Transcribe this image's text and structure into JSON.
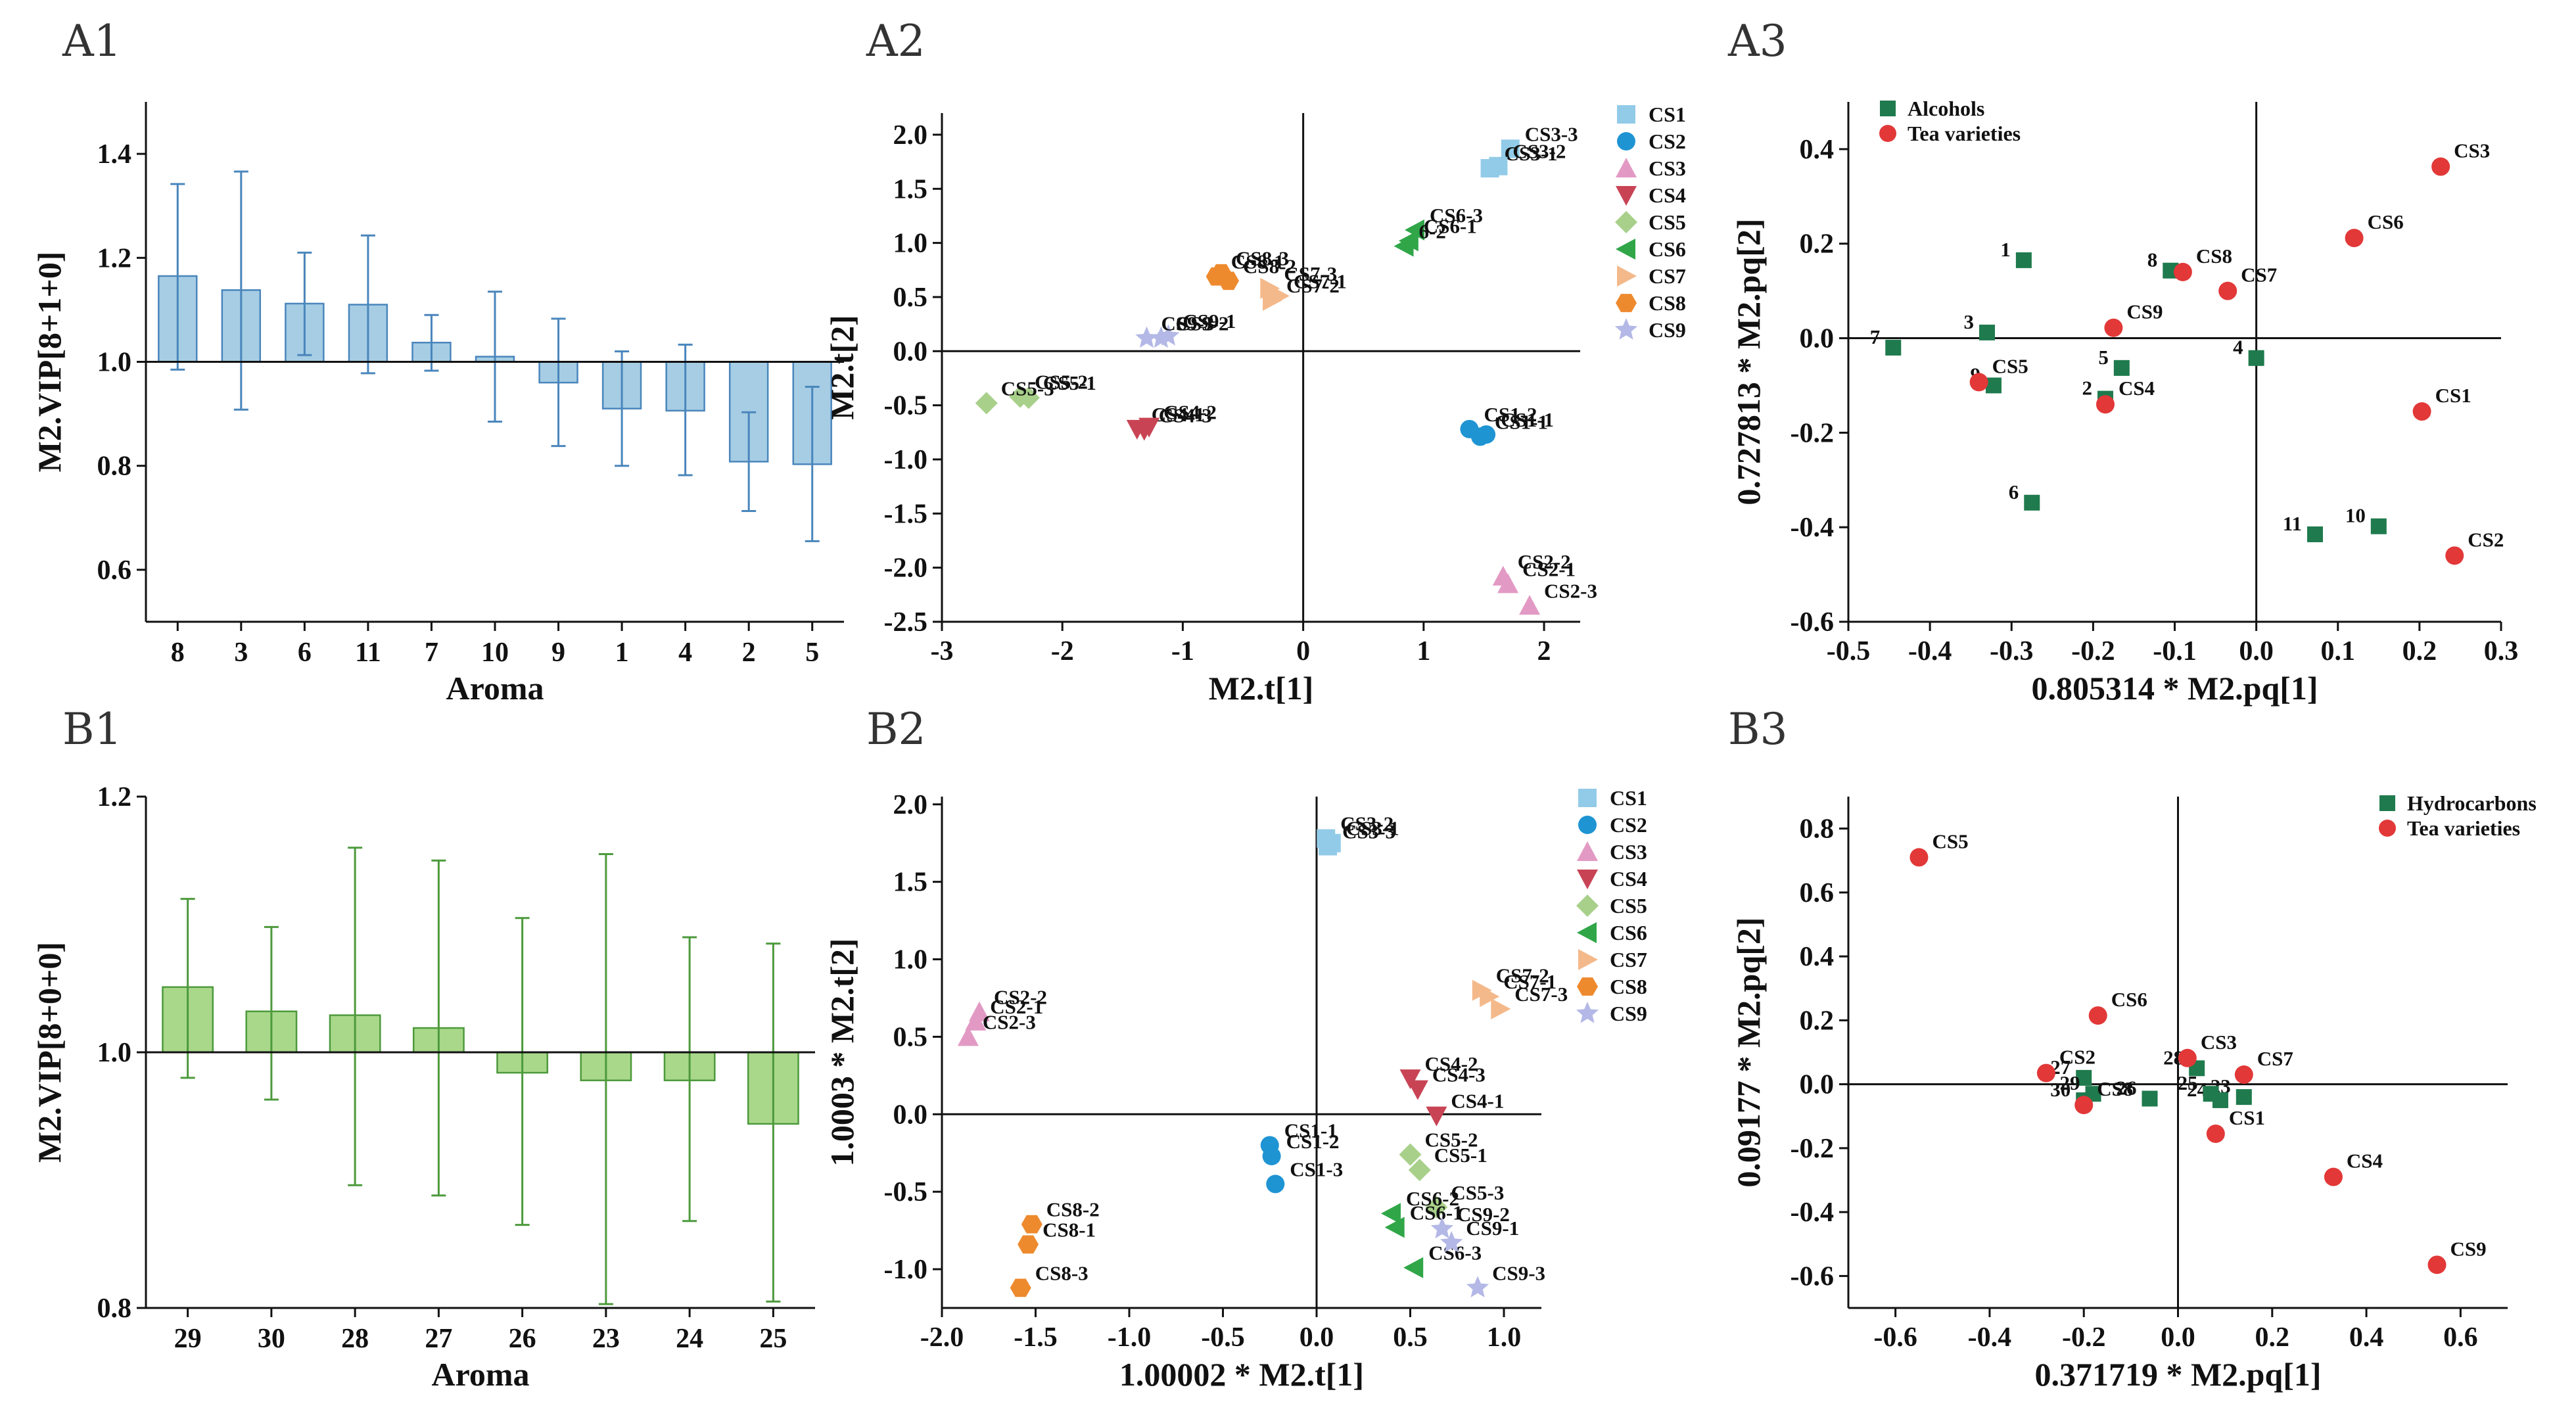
{
  "colors": {
    "vip_fill_A": "#a6cde4",
    "vip_stroke_A": "#4a86bc",
    "vip_fill_B": "#a9d88a",
    "vip_stroke_B": "#4d9a3c",
    "CS1": "#92cbe8",
    "CS2": "#1e94d3",
    "CS3": "#e29ac4",
    "CS4": "#c84455",
    "CS5": "#a8d08a",
    "CS6": "#30a648",
    "CS7": "#f4b98b",
    "CS8": "#ee8a2e",
    "CS9": "#b4b8e6",
    "compound": "#1f7a4d",
    "tea": "#e23838"
  },
  "chart_data": [
    {
      "id": "A1",
      "panel_label": "A1",
      "type": "bar",
      "xlabel": "Aroma",
      "ylabel": "M2.VIP[8+1+0]",
      "ylim": [
        0.5,
        1.5
      ],
      "yticks": [
        "0.6",
        "0.8",
        "1.0",
        "1.2",
        "1.4"
      ],
      "baseline": 1.0,
      "categories": [
        "8",
        "3",
        "6",
        "11",
        "7",
        "10",
        "9",
        "1",
        "4",
        "2",
        "5"
      ],
      "values": [
        1.165,
        1.138,
        1.112,
        1.11,
        1.037,
        1.01,
        0.96,
        0.91,
        0.906,
        0.808,
        0.803
      ],
      "err_high": [
        1.342,
        1.366,
        1.21,
        1.243,
        1.09,
        1.135,
        1.083,
        1.02,
        1.033,
        0.903,
        0.952
      ],
      "err_low": [
        0.985,
        0.908,
        1.013,
        0.978,
        0.983,
        0.885,
        0.838,
        0.8,
        0.782,
        0.713,
        0.655
      ]
    },
    {
      "id": "A2",
      "panel_label": "A2",
      "type": "scatter",
      "xlabel": "M2.t[1]",
      "ylabel": "M2.t[2]",
      "xlim": [
        -3,
        2.3
      ],
      "ylim": [
        -2.5,
        2.2
      ],
      "xticks": [
        "-3",
        "-2",
        "-1",
        "0",
        "1",
        "2"
      ],
      "yticks": [
        "-2.5",
        "-2.0",
        "-1.5",
        "-1.0",
        "-0.5",
        "0.0",
        "0.5",
        "1.0",
        "1.5",
        "2.0"
      ],
      "legend": [
        "CS1",
        "CS2",
        "CS3",
        "CS4",
        "CS5",
        "CS6",
        "CS7",
        "CS8",
        "CS9"
      ],
      "points": [
        {
          "label": "CS3-3",
          "x": 1.72,
          "y": 1.87,
          "g": "CS1"
        },
        {
          "label": "CS3-1",
          "x": 1.55,
          "y": 1.69,
          "g": "CS1"
        },
        {
          "label": "CS3-2",
          "x": 1.62,
          "y": 1.71,
          "g": "CS1"
        },
        {
          "label": "CS1-2",
          "x": 1.38,
          "y": -0.72,
          "g": "CS2"
        },
        {
          "label": "CS1-1",
          "x": 1.52,
          "y": -0.77,
          "g": "CS2"
        },
        {
          "label": "CS1-1",
          "x": 1.47,
          "y": -0.79,
          "g": "CS2"
        },
        {
          "label": "CS2-2",
          "x": 1.66,
          "y": -2.08,
          "g": "CS3"
        },
        {
          "label": "CS2-1",
          "x": 1.7,
          "y": -2.15,
          "g": "CS3"
        },
        {
          "label": "CS2-3",
          "x": 1.88,
          "y": -2.35,
          "g": "CS3"
        },
        {
          "label": "CS4-1",
          "x": -1.38,
          "y": -0.72,
          "g": "CS4"
        },
        {
          "label": "CS4-2",
          "x": -1.28,
          "y": -0.7,
          "g": "CS4"
        },
        {
          "label": "CS4-3",
          "x": -1.32,
          "y": -0.73,
          "g": "CS4"
        },
        {
          "label": "CS5-2",
          "x": -2.35,
          "y": -0.42,
          "g": "CS5"
        },
        {
          "label": "CS5-1",
          "x": -2.28,
          "y": -0.43,
          "g": "CS5"
        },
        {
          "label": "CS5-3",
          "x": -2.63,
          "y": -0.48,
          "g": "CS5"
        },
        {
          "label": "CS6-3",
          "x": 0.93,
          "y": 1.12,
          "g": "CS6"
        },
        {
          "label": "CS6-1",
          "x": 0.88,
          "y": 1.02,
          "g": "CS6"
        },
        {
          "label": "6-2",
          "x": 0.84,
          "y": 0.97,
          "g": "CS6"
        },
        {
          "label": "CS7-3",
          "x": -0.28,
          "y": 0.58,
          "g": "CS7"
        },
        {
          "label": "CS7-1",
          "x": -0.2,
          "y": 0.51,
          "g": "CS7"
        },
        {
          "label": "CS7-2",
          "x": -0.26,
          "y": 0.47,
          "g": "CS7"
        },
        {
          "label": "CS8-3",
          "x": -0.68,
          "y": 0.72,
          "g": "CS8"
        },
        {
          "label": "CS8-1",
          "x": -0.72,
          "y": 0.69,
          "g": "CS8"
        },
        {
          "label": "CS8-2",
          "x": -0.62,
          "y": 0.65,
          "g": "CS8"
        },
        {
          "label": "CS9-1",
          "x": -1.12,
          "y": 0.14,
          "g": "CS9"
        },
        {
          "label": "CS9-3",
          "x": -1.3,
          "y": 0.12,
          "g": "CS9"
        },
        {
          "label": "CS9-2",
          "x": -1.18,
          "y": 0.12,
          "g": "CS9"
        }
      ]
    },
    {
      "id": "A3",
      "panel_label": "A3",
      "type": "scatter",
      "xlabel": "0.805314 * M2.pq[1]",
      "ylabel": "0.727813 * M2.pq[2]",
      "xlim": [
        -0.5,
        0.3
      ],
      "ylim": [
        -0.6,
        0.5
      ],
      "xticks": [
        "-0.5",
        "-0.4",
        "-0.3",
        "-0.2",
        "-0.1",
        "0.0",
        "0.1",
        "0.2",
        "0.3"
      ],
      "yticks": [
        "-0.6",
        "-0.4",
        "-0.2",
        "0.0",
        "0.2",
        "0.4"
      ],
      "legend": [
        "Alcohols",
        "Tea varieties"
      ],
      "compounds": [
        {
          "label": "1",
          "x": -0.285,
          "y": 0.165
        },
        {
          "label": "2",
          "x": -0.185,
          "y": -0.128
        },
        {
          "label": "3",
          "x": -0.33,
          "y": 0.012
        },
        {
          "label": "4",
          "x": 0.0,
          "y": -0.042
        },
        {
          "label": "5",
          "x": -0.165,
          "y": -0.063
        },
        {
          "label": "6",
          "x": -0.275,
          "y": -0.348
        },
        {
          "label": "7",
          "x": -0.445,
          "y": -0.02
        },
        {
          "label": "8",
          "x": -0.105,
          "y": 0.143
        },
        {
          "label": "9",
          "x": -0.322,
          "y": -0.1
        },
        {
          "label": "10",
          "x": 0.15,
          "y": -0.398
        },
        {
          "label": "11",
          "x": 0.072,
          "y": -0.415
        }
      ],
      "tea": [
        {
          "label": "CS1",
          "x": 0.203,
          "y": -0.155
        },
        {
          "label": "CS2",
          "x": 0.243,
          "y": -0.46
        },
        {
          "label": "CS3",
          "x": 0.226,
          "y": 0.363
        },
        {
          "label": "CS4",
          "x": -0.185,
          "y": -0.14
        },
        {
          "label": "CS5",
          "x": -0.34,
          "y": -0.093
        },
        {
          "label": "CS6",
          "x": 0.12,
          "y": 0.212
        },
        {
          "label": "CS7",
          "x": -0.035,
          "y": 0.1
        },
        {
          "label": "CS8",
          "x": -0.09,
          "y": 0.14
        },
        {
          "label": "CS9",
          "x": -0.175,
          "y": 0.022
        }
      ]
    },
    {
      "id": "B1",
      "panel_label": "B1",
      "type": "bar",
      "xlabel": "Aroma",
      "ylabel": "M2.VIP[8+0+0]",
      "ylim": [
        0.8,
        1.2
      ],
      "yticks": [
        "0.8",
        "1.0",
        "1.2"
      ],
      "baseline": 1.0,
      "categories": [
        "29",
        "30",
        "28",
        "27",
        "26",
        "23",
        "24",
        "25"
      ],
      "values": [
        1.051,
        1.032,
        1.029,
        1.019,
        0.984,
        0.978,
        0.978,
        0.944
      ],
      "err_high": [
        1.12,
        1.098,
        1.16,
        1.15,
        1.105,
        1.155,
        1.09,
        1.085
      ],
      "err_low": [
        0.98,
        0.963,
        0.896,
        0.888,
        0.865,
        0.803,
        0.868,
        0.805
      ]
    },
    {
      "id": "B2",
      "panel_label": "B2",
      "type": "scatter",
      "xlabel": "1.00002 * M2.t[1]",
      "ylabel": "1.0003 * M2.t[2]",
      "xlim": [
        -2,
        1.2
      ],
      "ylim": [
        -1.25,
        2.05
      ],
      "xticks": [
        "-2.0",
        "-1.5",
        "-1.0",
        "-0.5",
        "0.0",
        "0.5",
        "1.0"
      ],
      "yticks": [
        "-1.0",
        "-0.5",
        "0.0",
        "0.5",
        "1.0",
        "1.5",
        "2.0"
      ],
      "legend": [
        "CS1",
        "CS2",
        "CS3",
        "CS4",
        "CS5",
        "CS6",
        "CS7",
        "CS8",
        "CS9"
      ],
      "points": [
        {
          "label": "CS3-2",
          "x": 0.05,
          "y": 1.78,
          "g": "CS1"
        },
        {
          "label": "CS3-1",
          "x": 0.08,
          "y": 1.75,
          "g": "CS1"
        },
        {
          "label": "CS3-3",
          "x": 0.06,
          "y": 1.73,
          "g": "CS1"
        },
        {
          "label": "CS1-1",
          "x": -0.25,
          "y": -0.2,
          "g": "CS2"
        },
        {
          "label": "CS1-2",
          "x": -0.24,
          "y": -0.27,
          "g": "CS2"
        },
        {
          "label": "CS1-3",
          "x": -0.22,
          "y": -0.45,
          "g": "CS2"
        },
        {
          "label": "CS2-2",
          "x": -1.8,
          "y": 0.66,
          "g": "CS3"
        },
        {
          "label": "CS2-1",
          "x": -1.82,
          "y": 0.6,
          "g": "CS3"
        },
        {
          "label": "CS2-3",
          "x": -1.86,
          "y": 0.5,
          "g": "CS3"
        },
        {
          "label": "CS4-2",
          "x": 0.5,
          "y": 0.23,
          "g": "CS4"
        },
        {
          "label": "CS4-3",
          "x": 0.54,
          "y": 0.16,
          "g": "CS4"
        },
        {
          "label": "CS4-1",
          "x": 0.64,
          "y": -0.01,
          "g": "CS4"
        },
        {
          "label": "CS5-2",
          "x": 0.5,
          "y": -0.26,
          "g": "CS5"
        },
        {
          "label": "CS5-1",
          "x": 0.55,
          "y": -0.36,
          "g": "CS5"
        },
        {
          "label": "CS5-3",
          "x": 0.64,
          "y": -0.6,
          "g": "CS5"
        },
        {
          "label": "CS6-2",
          "x": 0.4,
          "y": -0.64,
          "g": "CS6"
        },
        {
          "label": "CS6-1",
          "x": 0.42,
          "y": -0.73,
          "g": "CS6"
        },
        {
          "label": "CS6-3",
          "x": 0.52,
          "y": -0.99,
          "g": "CS6"
        },
        {
          "label": "CS7-2",
          "x": 0.88,
          "y": 0.8,
          "g": "CS7"
        },
        {
          "label": "CS7-1",
          "x": 0.92,
          "y": 0.76,
          "g": "CS7"
        },
        {
          "label": "CS7-3",
          "x": 0.98,
          "y": 0.68,
          "g": "CS7"
        },
        {
          "label": "CS8-2",
          "x": -1.52,
          "y": -0.71,
          "g": "CS8"
        },
        {
          "label": "CS8-1",
          "x": -1.54,
          "y": -0.84,
          "g": "CS8"
        },
        {
          "label": "CS8-3",
          "x": -1.58,
          "y": -1.12,
          "g": "CS8"
        },
        {
          "label": "CS9-2",
          "x": 0.67,
          "y": -0.74,
          "g": "CS9"
        },
        {
          "label": "CS9-1",
          "x": 0.72,
          "y": -0.83,
          "g": "CS9"
        },
        {
          "label": "CS9-3",
          "x": 0.86,
          "y": -1.12,
          "g": "CS9"
        }
      ]
    },
    {
      "id": "B3",
      "panel_label": "B3",
      "type": "scatter",
      "xlabel": "0.371719 * M2.pq[1]",
      "ylabel": "0.09177 * M2.pq[2]",
      "xlim": [
        -0.7,
        0.7
      ],
      "ylim": [
        -0.7,
        0.9
      ],
      "xticks": [
        "-0.6",
        "-0.4",
        "-0.2",
        "0.0",
        "0.2",
        "0.4",
        "0.6"
      ],
      "yticks": [
        "-0.6",
        "-0.4",
        "-0.2",
        "0.0",
        "0.2",
        "0.4",
        "0.6",
        "0.8"
      ],
      "legend": [
        "Hydrocarbons",
        "Tea varieties"
      ],
      "compounds": [
        {
          "label": "23",
          "x": 0.14,
          "y": -0.04
        },
        {
          "label": "24",
          "x": 0.09,
          "y": -0.05
        },
        {
          "label": "25",
          "x": 0.07,
          "y": -0.03
        },
        {
          "label": "26",
          "x": -0.06,
          "y": -0.045
        },
        {
          "label": "27",
          "x": -0.2,
          "y": 0.02
        },
        {
          "label": "28",
          "x": 0.04,
          "y": 0.05
        },
        {
          "label": "29",
          "x": -0.18,
          "y": -0.03
        },
        {
          "label": "30",
          "x": -0.2,
          "y": -0.05
        }
      ],
      "tea": [
        {
          "label": "CS1",
          "x": 0.08,
          "y": -0.155
        },
        {
          "label": "CS2",
          "x": -0.28,
          "y": 0.035
        },
        {
          "label": "CS3",
          "x": 0.02,
          "y": 0.082
        },
        {
          "label": "CS4",
          "x": 0.33,
          "y": -0.29
        },
        {
          "label": "CS5",
          "x": -0.55,
          "y": 0.71
        },
        {
          "label": "CS6",
          "x": -0.17,
          "y": 0.215
        },
        {
          "label": "CS7",
          "x": 0.14,
          "y": 0.03
        },
        {
          "label": "CS8",
          "x": -0.2,
          "y": -0.065
        },
        {
          "label": "CS9",
          "x": 0.55,
          "y": -0.565
        }
      ]
    }
  ]
}
